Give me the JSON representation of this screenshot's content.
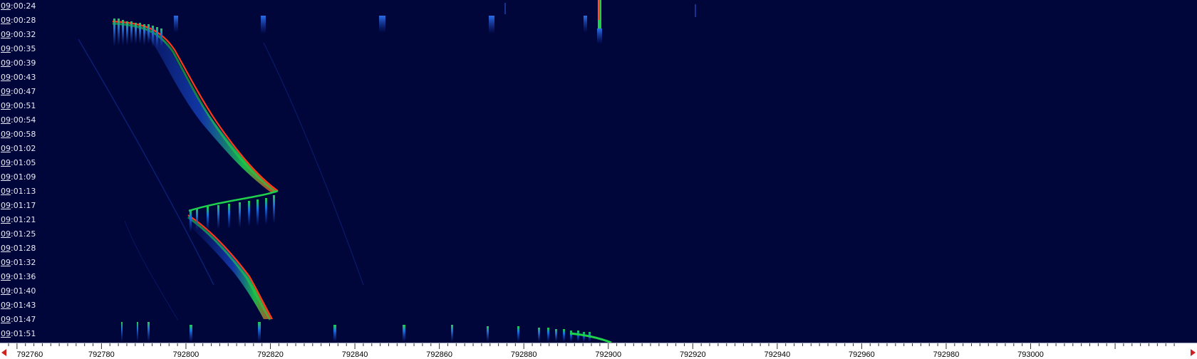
{
  "time_axis": {
    "labels": [
      "09:00:24",
      "09:00:28",
      "09:00:32",
      "09:00:35",
      "09:00:39",
      "09:00:43",
      "09:00:47",
      "09:00:51",
      "09:00:54",
      "09:00:58",
      "09:01:02",
      "09:01:05",
      "09:01:09",
      "09:01:13",
      "09:01:17",
      "09:01:21",
      "09:01:25",
      "09:01:28",
      "09:01:32",
      "09:01:36",
      "09:01:40",
      "09:01:43",
      "09:01:47",
      "09:01:51"
    ]
  },
  "frequency_axis": {
    "labels": [
      "792760",
      "792780",
      "792800",
      "792820",
      "792840",
      "792860",
      "792880",
      "792900",
      "792920",
      "792940",
      "792960",
      "792980",
      "793000"
    ]
  },
  "colors": {
    "background": "#00053a",
    "signal_low": "#1a4fd8",
    "signal_mid": "#1fd14a",
    "signal_high": "#ff3a1a",
    "scroll_arrow": "#d02020"
  },
  "icons": {
    "scroll_left": "red-left-triangle",
    "scroll_right": "red-right-triangle"
  }
}
